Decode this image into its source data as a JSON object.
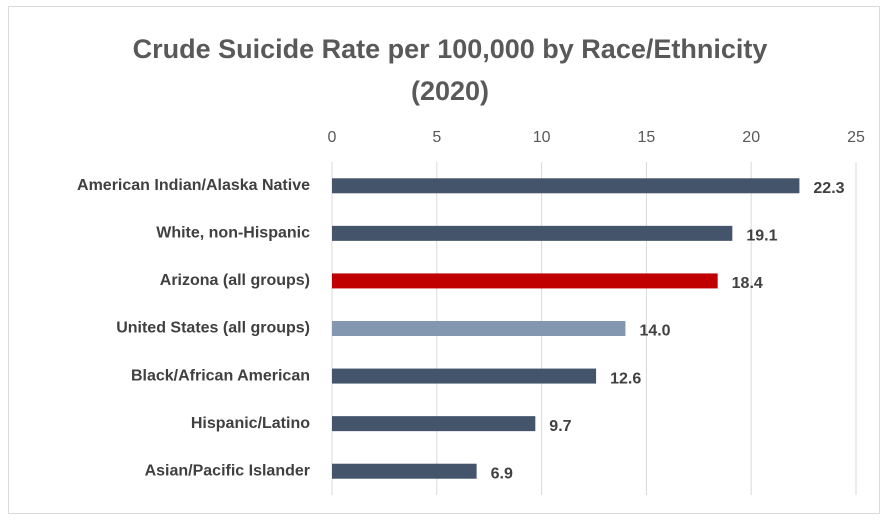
{
  "chart_data": {
    "type": "bar",
    "orientation": "horizontal",
    "title": "Crude Suicide Rate per 100,000 by Race/Ethnicity (2020)",
    "categories": [
      "American Indian/Alaska Native",
      "White, non-Hispanic",
      "Arizona (all groups)",
      "United States (all groups)",
      "Black/African American",
      "Hispanic/Latino",
      "Asian/Pacific Islander"
    ],
    "values": [
      22.3,
      19.1,
      18.4,
      14.0,
      12.6,
      9.7,
      6.9
    ],
    "value_labels": [
      "22.3",
      "19.1",
      "18.4",
      "14.0",
      "12.6",
      "9.7",
      "6.9"
    ],
    "colors": [
      "#44546a",
      "#44546a",
      "#c00000",
      "#8497b0",
      "#44546a",
      "#44546a",
      "#44546a"
    ],
    "xlim": [
      0,
      25
    ],
    "xticks": [
      0,
      5,
      10,
      15,
      20,
      25
    ],
    "grid": true,
    "x_axis_position": "top"
  }
}
